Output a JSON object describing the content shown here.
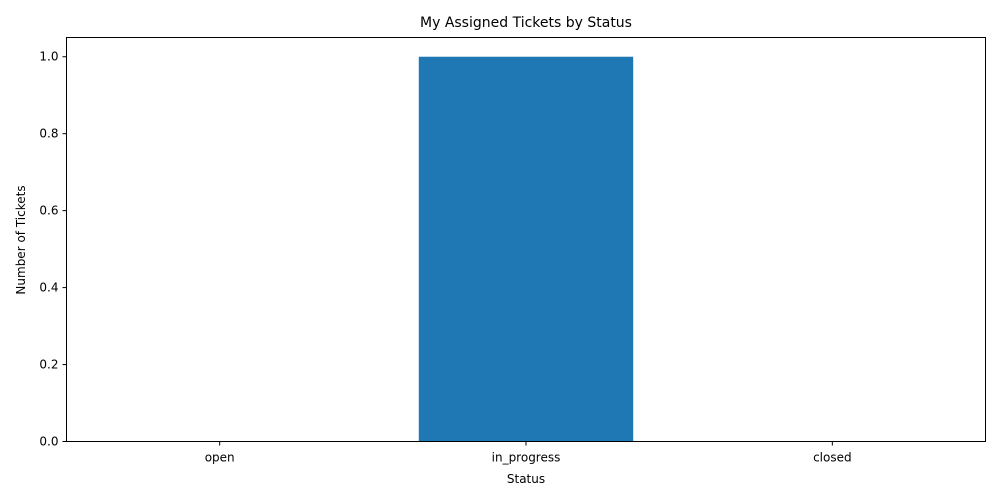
{
  "chart_data": {
    "type": "bar",
    "title": "My Assigned Tickets by Status",
    "xlabel": "Status",
    "ylabel": "Number of Tickets",
    "categories": [
      "open",
      "in_progress",
      "closed"
    ],
    "values": [
      0,
      1,
      0
    ],
    "ylim": [
      0,
      1.05
    ],
    "yticks": [
      "0.0",
      "0.2",
      "0.4",
      "0.6",
      "0.8",
      "1.0"
    ],
    "grid": false,
    "bar_color": "#1f77b4"
  }
}
